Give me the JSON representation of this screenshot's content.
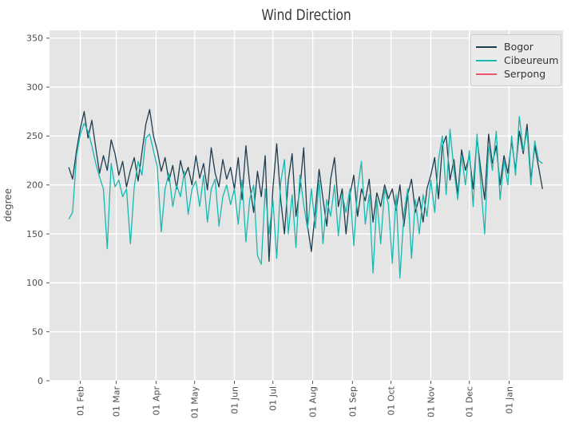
{
  "chart_data": {
    "type": "line",
    "title": "Wind Direction",
    "ylabel": "degree",
    "xlabel": "",
    "x_unit_note": "daily wind direction, x measured in days since first point (23 Jan)",
    "x_domain": [
      -15,
      385
    ],
    "y_domain": [
      0,
      358
    ],
    "y_ticks": [
      0,
      50,
      100,
      150,
      200,
      250,
      300,
      350
    ],
    "x_ticks": [
      {
        "label": "01 Feb",
        "day": 9
      },
      {
        "label": "01 Mar",
        "day": 37
      },
      {
        "label": "01 Apr",
        "day": 68
      },
      {
        "label": "01 May",
        "day": 98
      },
      {
        "label": "01 Jun",
        "day": 129
      },
      {
        "label": "01 Jul",
        "day": 159
      },
      {
        "label": "01 Aug",
        "day": 190
      },
      {
        "label": "01 Sep",
        "day": 221
      },
      {
        "label": "01 Oct",
        "day": 251
      },
      {
        "label": "01 Nov",
        "day": 282
      },
      {
        "label": "01 Dec",
        "day": 312
      },
      {
        "label": "01 Jan",
        "day": 343
      }
    ],
    "grid": "white major gridlines on gray plot background",
    "legend_position": "upper right",
    "series": [
      {
        "name": "Bogor",
        "color": "#1d3d4f",
        "start_day": 0,
        "step_days": 3,
        "values": [
          218,
          206,
          235,
          258,
          275,
          248,
          266,
          238,
          212,
          230,
          215,
          246,
          232,
          210,
          224,
          198,
          215,
          228,
          204,
          233,
          262,
          277,
          250,
          235,
          214,
          228,
          204,
          220,
          196,
          225,
          208,
          218,
          200,
          230,
          207,
          222,
          195,
          238,
          212,
          198,
          226,
          206,
          218,
          196,
          228,
          185,
          240,
          200,
          172,
          214,
          188,
          230,
          122,
          196,
          242,
          186,
          150,
          205,
          232,
          168,
          196,
          238,
          158,
          132,
          174,
          216,
          186,
          158,
          206,
          228,
          178,
          196,
          150,
          190,
          210,
          168,
          196,
          184,
          206,
          162,
          192,
          178,
          200,
          186,
          196,
          174,
          200,
          158,
          190,
          206,
          172,
          188,
          162,
          196,
          210,
          228,
          186,
          240,
          250,
          205,
          226,
          190,
          236,
          215,
          230,
          196,
          248,
          215,
          185,
          252,
          222,
          240,
          200,
          230,
          212,
          245,
          215,
          255,
          232,
          262,
          205,
          240,
          218,
          196
        ]
      },
      {
        "name": "Cibeureum",
        "color": "#17b9b0",
        "start_day": 0,
        "step_days": 3,
        "values": [
          165,
          172,
          230,
          252,
          263,
          255,
          240,
          222,
          208,
          196,
          135,
          222,
          198,
          205,
          188,
          196,
          140,
          198,
          224,
          210,
          248,
          252,
          235,
          218,
          152,
          196,
          212,
          178,
          200,
          188,
          214,
          170,
          196,
          204,
          178,
          210,
          162,
          196,
          206,
          158,
          188,
          200,
          180,
          196,
          160,
          205,
          142,
          186,
          200,
          128,
          119,
          196,
          150,
          185,
          125,
          202,
          226,
          150,
          190,
          136,
          210,
          180,
          155,
          196,
          156,
          205,
          140,
          185,
          168,
          200,
          148,
          190,
          172,
          196,
          138,
          196,
          224,
          160,
          190,
          110,
          185,
          140,
          196,
          180,
          120,
          190,
          105,
          170,
          196,
          125,
          185,
          150,
          190,
          168,
          205,
          172,
          226,
          250,
          190,
          257,
          215,
          185,
          230,
          200,
          235,
          178,
          252,
          200,
          150,
          240,
          215,
          255,
          185,
          225,
          200,
          250,
          210,
          270,
          235,
          255,
          200,
          245,
          225,
          222
        ]
      },
      {
        "name": "Serpong",
        "color": "#ef566e",
        "start_day": 0,
        "step_days": 3,
        "values": []
      }
    ],
    "colors": {
      "figure_bg": "#ffffff",
      "plot_bg": "#e5e5e5",
      "grid": "#ffffff",
      "tick_mark": "#555555",
      "tick_label": "#4d4d4d",
      "title": "#3a3a3a",
      "legend_bg": "#ebebeb",
      "legend_border": "#cccccc"
    }
  }
}
